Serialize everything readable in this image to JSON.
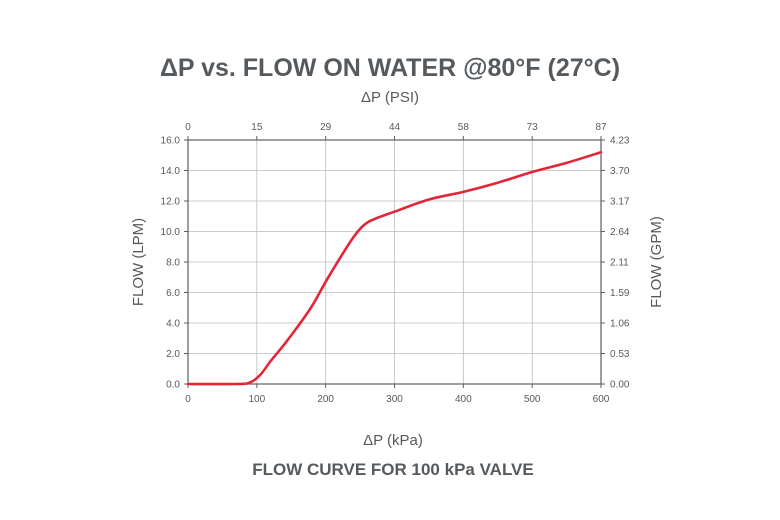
{
  "chart_data": {
    "type": "line",
    "title": "ΔP vs. FLOW ON WATER @80°F (27°C)",
    "subtitle": "FLOW CURVE FOR 100 kPa VALVE",
    "xlabel": "ΔP (kPa)",
    "x2label": "ΔP  (PSI)",
    "ylabel": "FLOW (LPM)",
    "y2label": "FLOW (GPM)",
    "xlim": [
      0,
      600
    ],
    "ylim": [
      0,
      16
    ],
    "grid": true,
    "x_ticks": [
      "0",
      "100",
      "200",
      "300",
      "400",
      "500",
      "600"
    ],
    "x_tick_values": [
      0,
      100,
      200,
      300,
      400,
      500,
      600
    ],
    "x2_ticks": [
      "0",
      "15",
      "29",
      "44",
      "58",
      "73",
      "87"
    ],
    "y_ticks": [
      "0.0",
      "2.0",
      "4.0",
      "6.0",
      "8.0",
      "10.0",
      "12.0",
      "14.0",
      "16.0"
    ],
    "y_tick_values": [
      0,
      2,
      4,
      6,
      8,
      10,
      12,
      14,
      16
    ],
    "y2_ticks": [
      "0.00",
      "0.53",
      "1.06",
      "1.59",
      "2.11",
      "2.64",
      "3.17",
      "3.70",
      "4.23"
    ],
    "series": [
      {
        "x": [
          0,
          70,
          90,
          105,
          120,
          140,
          160,
          180,
          200,
          220,
          240,
          255,
          270,
          300,
          350,
          400,
          450,
          500,
          550,
          600
        ],
        "y": [
          0,
          0,
          0.1,
          0.6,
          1.5,
          2.6,
          3.8,
          5.1,
          6.7,
          8.2,
          9.6,
          10.4,
          10.8,
          11.3,
          12.1,
          12.6,
          13.2,
          13.9,
          14.5,
          15.2
        ]
      }
    ],
    "colors": {
      "line": "#e32636",
      "text": "#555a5e",
      "grid": "#b9bcbf"
    }
  }
}
